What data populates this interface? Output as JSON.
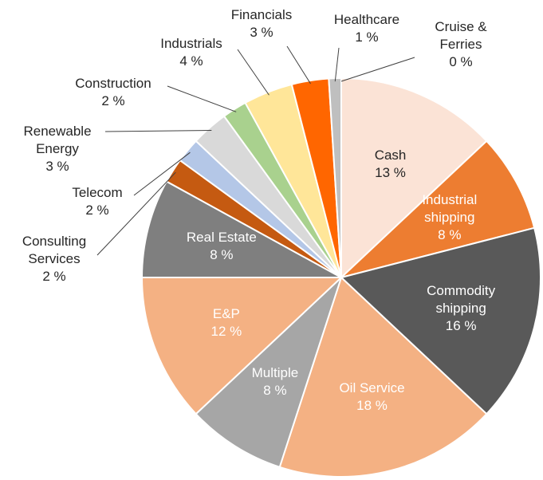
{
  "chart_data": {
    "type": "pie",
    "categories": [
      "Cash",
      "Industrial shipping",
      "Commodity shipping",
      "Oil Service",
      "Multiple",
      "E&P",
      "Real Estate",
      "Consulting Services",
      "Telecom",
      "Renewable Energy",
      "Construction",
      "Industrials",
      "Financials",
      "Healthcare",
      "Cruise & Ferries"
    ],
    "values": [
      13,
      8,
      16,
      18,
      8,
      12,
      8,
      2,
      2,
      3,
      2,
      4,
      3,
      1,
      0
    ],
    "value_labels": [
      "13 %",
      "8 %",
      "16 %",
      "18 %",
      "8 %",
      "12 %",
      "8 %",
      "2 %",
      "2 %",
      "3 %",
      "2 %",
      "4 %",
      "3 %",
      "1 %",
      "0 %"
    ],
    "colors": [
      "#fbe3d6",
      "#ed7d31",
      "#595959",
      "#f4b183",
      "#a6a6a6",
      "#f4b183",
      "#7f7f7f",
      "#c55a11",
      "#b4c7e7",
      "#d9d9d9",
      "#a9d18e",
      "#ffe699",
      "#ff6600",
      "#bfbfbf",
      "#dae3f3"
    ]
  }
}
